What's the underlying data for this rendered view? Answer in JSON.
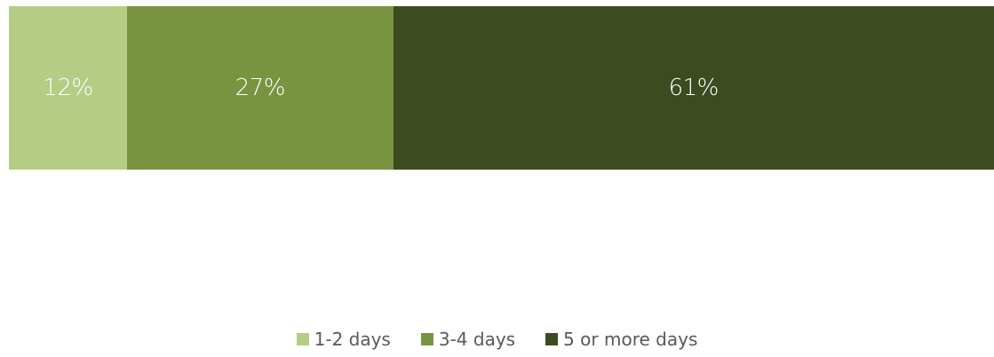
{
  "chart_data": {
    "type": "bar",
    "orientation": "horizontal",
    "stacked": true,
    "categories": [
      ""
    ],
    "series": [
      {
        "name": "1-2 days",
        "values": [
          12
        ],
        "label": "12%",
        "color": "#b5cc85"
      },
      {
        "name": "3-4 days",
        "values": [
          27
        ],
        "label": "27%",
        "color": "#789440"
      },
      {
        "name": "5 or more days",
        "values": [
          61
        ],
        "label": "61%",
        "color": "#3c4b20"
      }
    ],
    "xlim": [
      0,
      100
    ],
    "grid": false,
    "legend_position": "bottom"
  }
}
